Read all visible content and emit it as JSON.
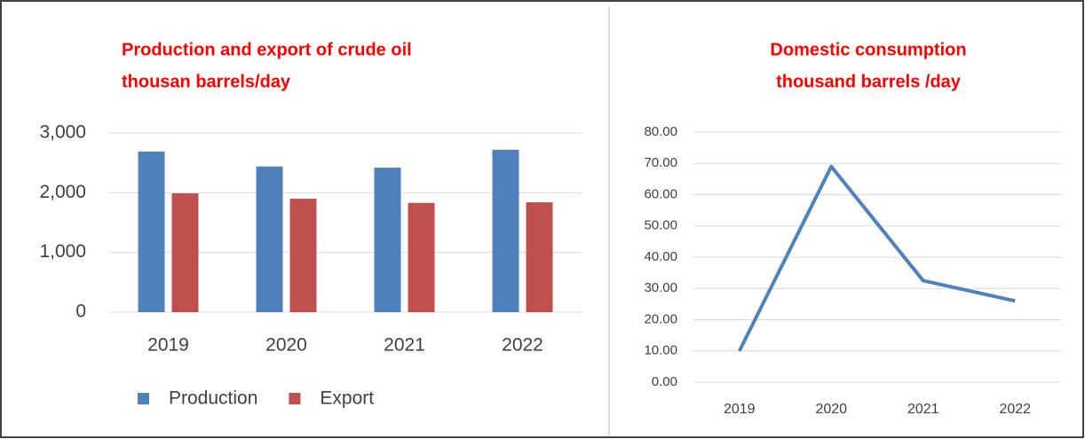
{
  "chart_data": [
    {
      "type": "bar",
      "title": [
        "Production and export of crude oil",
        "thousan barrels/day"
      ],
      "categories": [
        "2019",
        "2020",
        "2021",
        "2022"
      ],
      "series": [
        {
          "name": "Production",
          "color": "#4f81bd",
          "values": [
            2690,
            2440,
            2420,
            2720
          ]
        },
        {
          "name": "Export",
          "color": "#c0504d",
          "values": [
            1990,
            1900,
            1830,
            1840
          ]
        }
      ],
      "ylim": [
        0,
        3000
      ],
      "yticks": [
        {
          "value": 0,
          "label": "0"
        },
        {
          "value": 1000,
          "label": "1,000"
        },
        {
          "value": 2000,
          "label": "2,000"
        },
        {
          "value": 3000,
          "label": "3,000"
        }
      ],
      "grid": true,
      "legend": "bottom"
    },
    {
      "type": "line",
      "title": [
        "Domestic consumption",
        "thousand barrels /day"
      ],
      "categories": [
        "2019",
        "2020",
        "2021",
        "2022"
      ],
      "series": [
        {
          "name": "Domestic consumption",
          "color": "#4f81bd",
          "values": [
            10,
            69,
            32.5,
            26
          ]
        }
      ],
      "ylim": [
        0,
        80
      ],
      "yticks": [
        {
          "value": 0,
          "label": "0.00"
        },
        {
          "value": 10,
          "label": "10.00"
        },
        {
          "value": 20,
          "label": "20.00"
        },
        {
          "value": 30,
          "label": "30.00"
        },
        {
          "value": 40,
          "label": "40.00"
        },
        {
          "value": 50,
          "label": "50.00"
        },
        {
          "value": 60,
          "label": "60.00"
        },
        {
          "value": 70,
          "label": "70.00"
        },
        {
          "value": 80,
          "label": "80.00"
        }
      ],
      "grid": true
    }
  ]
}
